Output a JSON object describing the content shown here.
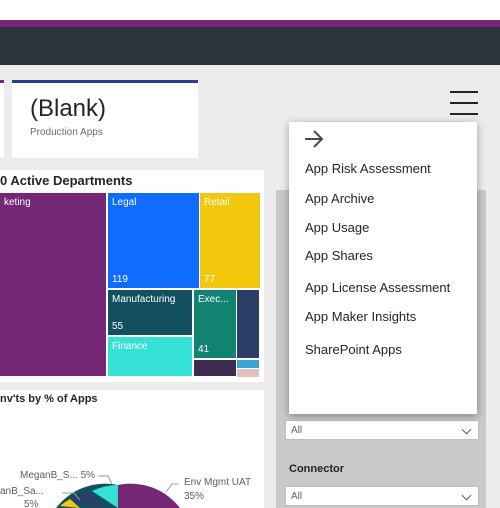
{
  "card": {
    "value": "(Blank)",
    "label": "Production Apps"
  },
  "treemap": {
    "title": "0 Active Departments",
    "tiles": [
      {
        "label": "keting",
        "value": "",
        "color": "#742774"
      },
      {
        "label": "Legal",
        "value": "119",
        "color": "#0f6cff"
      },
      {
        "label": "Retail",
        "value": "77",
        "color": "#f2c80f"
      },
      {
        "label": "Manufacturing",
        "value": "55",
        "color": "#13505f"
      },
      {
        "label": "Exec...",
        "value": "41",
        "color": "#118370"
      },
      {
        "label": "Finance",
        "value": "",
        "color": "#35e0d4"
      }
    ]
  },
  "pie": {
    "title": "nv'ts by % of Apps",
    "labels": {
      "env_mgmt": "Env Mgmt UAT",
      "env_mgmt_pct": "35%",
      "meganb_s": "MeganB_S... 5%",
      "meganb_sa": "anB_Sa...",
      "meganb_sa_pct": "5%"
    }
  },
  "filters": {
    "connector_label": "Connector",
    "all_label": "All"
  },
  "menu": {
    "arrow_icon": "arrow-right-icon",
    "items": [
      "App Risk Assessment",
      "App Archive",
      "App Usage",
      "App Shares",
      "App License Assessment",
      "App Maker Insights",
      "SharePoint Apps"
    ]
  },
  "colors": {
    "purple": "#742774",
    "dark": "#2d333c",
    "navy": "#2e3b91"
  }
}
